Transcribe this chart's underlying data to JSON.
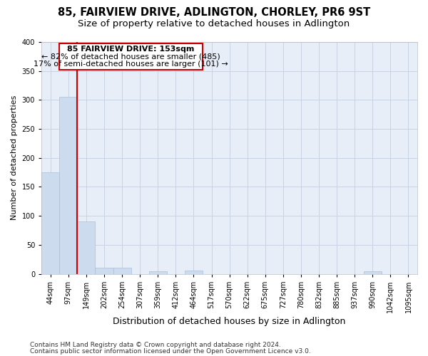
{
  "title1": "85, FAIRVIEW DRIVE, ADLINGTON, CHORLEY, PR6 9ST",
  "title2": "Size of property relative to detached houses in Adlington",
  "xlabel": "Distribution of detached houses by size in Adlington",
  "ylabel": "Number of detached properties",
  "footnote1": "Contains HM Land Registry data © Crown copyright and database right 2024.",
  "footnote2": "Contains public sector information licensed under the Open Government Licence v3.0.",
  "annotation_line1": "85 FAIRVIEW DRIVE: 153sqm",
  "annotation_line2": "← 82% of detached houses are smaller (485)",
  "annotation_line3": "17% of semi-detached houses are larger (101) →",
  "bar_labels": [
    "44sqm",
    "97sqm",
    "149sqm",
    "202sqm",
    "254sqm",
    "307sqm",
    "359sqm",
    "412sqm",
    "464sqm",
    "517sqm",
    "570sqm",
    "622sqm",
    "675sqm",
    "727sqm",
    "780sqm",
    "832sqm",
    "885sqm",
    "937sqm",
    "990sqm",
    "1042sqm",
    "1095sqm"
  ],
  "bar_values": [
    175,
    305,
    90,
    10,
    10,
    0,
    4,
    0,
    5,
    0,
    0,
    0,
    0,
    0,
    0,
    0,
    0,
    0,
    4,
    0,
    0
  ],
  "bar_color": "#ccdcee",
  "bar_edge_color": "#aac0d8",
  "red_line_bar_index": 2,
  "ylim": [
    0,
    400
  ],
  "yticks": [
    0,
    50,
    100,
    150,
    200,
    250,
    300,
    350,
    400
  ],
  "grid_color": "#c8d4e4",
  "bg_color": "#e8eef8",
  "annotation_box_color": "#ffffff",
  "annotation_box_edge": "#cc0000",
  "red_line_color": "#cc0000",
  "title1_fontsize": 10.5,
  "title2_fontsize": 9.5,
  "xlabel_fontsize": 9,
  "ylabel_fontsize": 8,
  "tick_fontsize": 7,
  "footnote_fontsize": 6.5,
  "annotation_fontsize": 8
}
